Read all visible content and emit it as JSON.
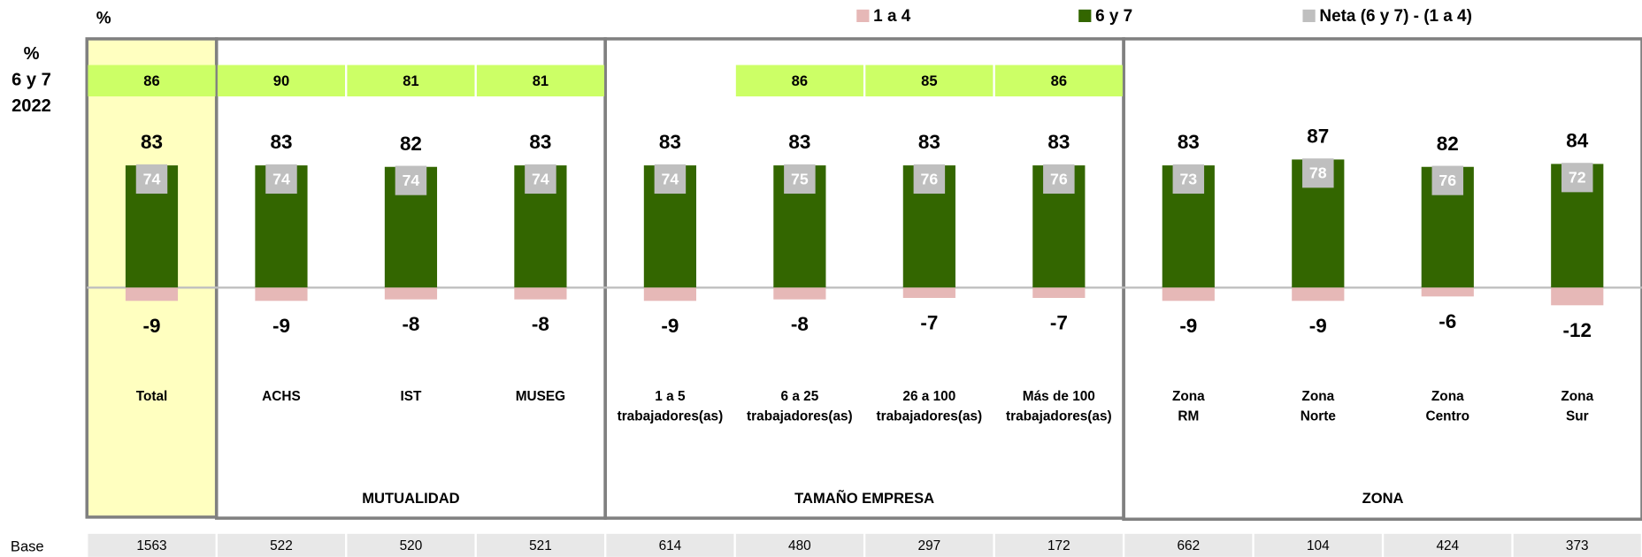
{
  "chart_data": {
    "type": "diverging-bar",
    "percent_label": "%",
    "reference": {
      "name": [
        "%",
        "6 y 7",
        "2022"
      ],
      "color": "#ccff66",
      "values": [
        86,
        90,
        81,
        81,
        null,
        86,
        85,
        86,
        null,
        null,
        null,
        null
      ]
    },
    "categories": [
      [
        "Total"
      ],
      [
        "ACHS"
      ],
      [
        "IST"
      ],
      [
        "MUSEG"
      ],
      [
        "1 a 5",
        "trabajadores(as)"
      ],
      [
        "6 a 25",
        "trabajadores(as)"
      ],
      [
        "26 a 100",
        "trabajadores(as)"
      ],
      [
        "Más de 100",
        "trabajadores(as)"
      ],
      [
        "Zona",
        "RM"
      ],
      [
        "Zona",
        "Norte"
      ],
      [
        "Zona",
        "Centro"
      ],
      [
        "Zona",
        "Sur"
      ]
    ],
    "groups": [
      "MUTUALIDAD",
      "TAMAÑO EMPRESA",
      "ZONA"
    ],
    "series": [
      {
        "name": "1 a 4",
        "color": "#e6b8b7",
        "values": [
          -9,
          -9,
          -8,
          -8,
          -9,
          -8,
          -7,
          -7,
          -9,
          -9,
          -6,
          -12
        ]
      },
      {
        "name": "6 y 7",
        "color": "#336600",
        "values": [
          83,
          83,
          82,
          83,
          83,
          83,
          83,
          83,
          83,
          87,
          82,
          84
        ]
      },
      {
        "name": "Neta (6 y 7) - (1 a 4)",
        "color": "#bfbfbf",
        "values": [
          74,
          74,
          74,
          74,
          74,
          75,
          76,
          76,
          73,
          78,
          76,
          72
        ]
      }
    ],
    "ylim": [
      -40,
      100
    ],
    "base_label": "Base",
    "base": [
      1563,
      522,
      520,
      521,
      614,
      480,
      297,
      172,
      662,
      104,
      424,
      373
    ]
  }
}
